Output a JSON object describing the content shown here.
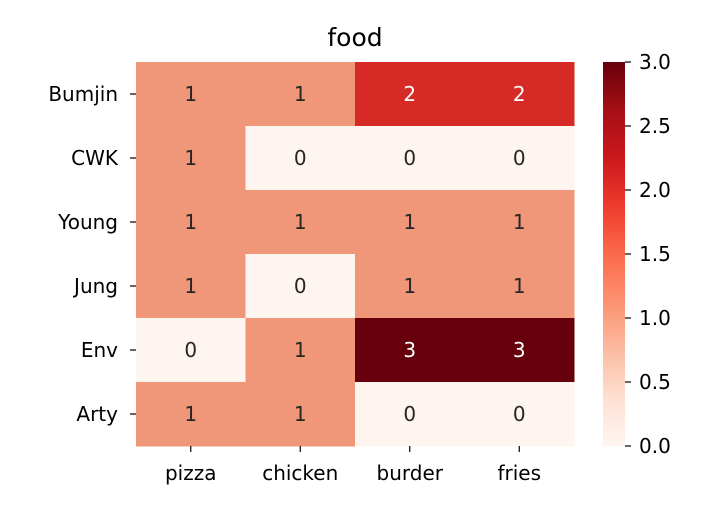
{
  "chart_data": {
    "type": "heatmap",
    "title": "food",
    "xlabel": "",
    "ylabel": "",
    "columns": [
      "pizza",
      "chicken",
      "burder",
      "fries"
    ],
    "rows": [
      "Bumjin",
      "CWK",
      "Young",
      "Jung",
      "Env",
      "Arty"
    ],
    "values": [
      [
        1,
        1,
        2,
        2
      ],
      [
        1,
        0,
        0,
        0
      ],
      [
        1,
        1,
        1,
        1
      ],
      [
        1,
        0,
        1,
        1
      ],
      [
        0,
        1,
        3,
        3
      ],
      [
        1,
        1,
        0,
        0
      ]
    ],
    "vmin": 0,
    "vmax": 3,
    "colormap": "Reds",
    "annotate": true,
    "colorbar": {
      "ticks": [
        "0.0",
        "0.5",
        "1.0",
        "1.5",
        "2.0",
        "2.5",
        "3.0"
      ]
    },
    "colors": {
      "0": "#fff5f0",
      "1": "#f0977a",
      "2": "#d52a25",
      "3": "#67000d",
      "text_light": "#ffffff",
      "text_dark": "#262626"
    }
  }
}
